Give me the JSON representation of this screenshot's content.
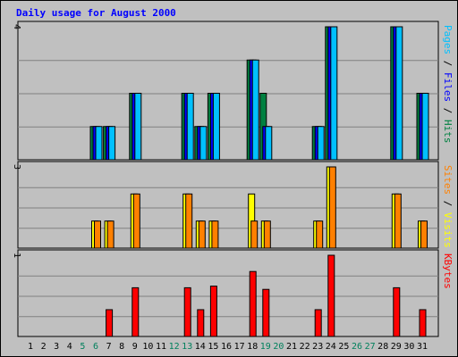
{
  "chart_data": {
    "type": "bar",
    "title": "Daily usage for August 2000",
    "categories": [
      "1",
      "2",
      "3",
      "4",
      "5",
      "6",
      "7",
      "8",
      "9",
      "10",
      "11",
      "12",
      "13",
      "14",
      "15",
      "16",
      "17",
      "18",
      "19",
      "20",
      "21",
      "22",
      "23",
      "24",
      "25",
      "26",
      "27",
      "28",
      "29",
      "30",
      "31"
    ],
    "weekend_days": [
      "5",
      "6",
      "12",
      "13",
      "19",
      "20",
      "26",
      "27"
    ],
    "panels": [
      {
        "id": "hits",
        "ylim": [
          0,
          4
        ],
        "max_label": "4",
        "legend": [
          "Pages",
          "Files",
          "Hits"
        ],
        "series": [
          {
            "name": "Hits",
            "color": "#008040",
            "values": [
              0,
              0,
              0,
              0,
              0,
              1,
              1,
              0,
              2,
              0,
              0,
              0,
              2,
              1,
              2,
              0,
              0,
              3,
              2,
              0,
              0,
              0,
              1,
              4,
              0,
              0,
              0,
              0,
              4,
              0,
              2
            ]
          },
          {
            "name": "Files",
            "color": "#0000ff",
            "values": [
              0,
              0,
              0,
              0,
              0,
              1,
              1,
              0,
              2,
              0,
              0,
              0,
              2,
              1,
              2,
              0,
              0,
              3,
              1,
              0,
              0,
              0,
              1,
              4,
              0,
              0,
              0,
              0,
              4,
              0,
              2
            ]
          },
          {
            "name": "Pages",
            "color": "#00c0ff",
            "values": [
              0,
              0,
              0,
              0,
              0,
              1,
              1,
              0,
              2,
              0,
              0,
              0,
              2,
              1,
              2,
              0,
              0,
              3,
              1,
              0,
              0,
              0,
              1,
              4,
              0,
              0,
              0,
              0,
              4,
              0,
              2
            ]
          }
        ]
      },
      {
        "id": "visits",
        "ylim": [
          0,
          3
        ],
        "max_label": "3",
        "legend": [
          "Sites",
          "Visits"
        ],
        "series": [
          {
            "name": "Visits",
            "color": "#ffff00",
            "values": [
              0,
              0,
              0,
              0,
              0,
              1,
              1,
              0,
              2,
              0,
              0,
              0,
              2,
              1,
              1,
              0,
              0,
              2,
              1,
              0,
              0,
              0,
              1,
              3,
              0,
              0,
              0,
              0,
              2,
              0,
              1
            ]
          },
          {
            "name": "Sites",
            "color": "#ff8000",
            "values": [
              0,
              0,
              0,
              0,
              0,
              1,
              1,
              0,
              2,
              0,
              0,
              0,
              2,
              1,
              1,
              0,
              0,
              1,
              1,
              0,
              0,
              0,
              1,
              3,
              0,
              0,
              0,
              0,
              2,
              0,
              1
            ]
          }
        ]
      },
      {
        "id": "kbytes",
        "ylim": [
          0,
          1
        ],
        "max_label": "1",
        "legend": [
          "KBytes"
        ],
        "series": [
          {
            "name": "KBytes",
            "color": "#ff0000",
            "values": [
              0,
              0,
              0,
              0,
              0,
              0,
              0.33,
              0,
              0.6,
              0,
              0,
              0,
              0.6,
              0.33,
              0.62,
              0,
              0,
              0.8,
              0.58,
              0,
              0,
              0,
              0.33,
              1,
              0,
              0,
              0,
              0,
              0.6,
              0,
              0.33
            ]
          }
        ]
      }
    ],
    "legend_colors": {
      "Pages": "#00c0ff",
      "Files": "#0000ff",
      "Hits": "#008040",
      "Sites": "#ff8000",
      "Visits": "#ffff00",
      "KBytes": "#ff0000"
    },
    "colors": {
      "title": "#0000ff",
      "weekend_label": "#00805c",
      "weekday_label": "#000000",
      "background": "#c0c0c0",
      "gridline": "#808080"
    }
  }
}
